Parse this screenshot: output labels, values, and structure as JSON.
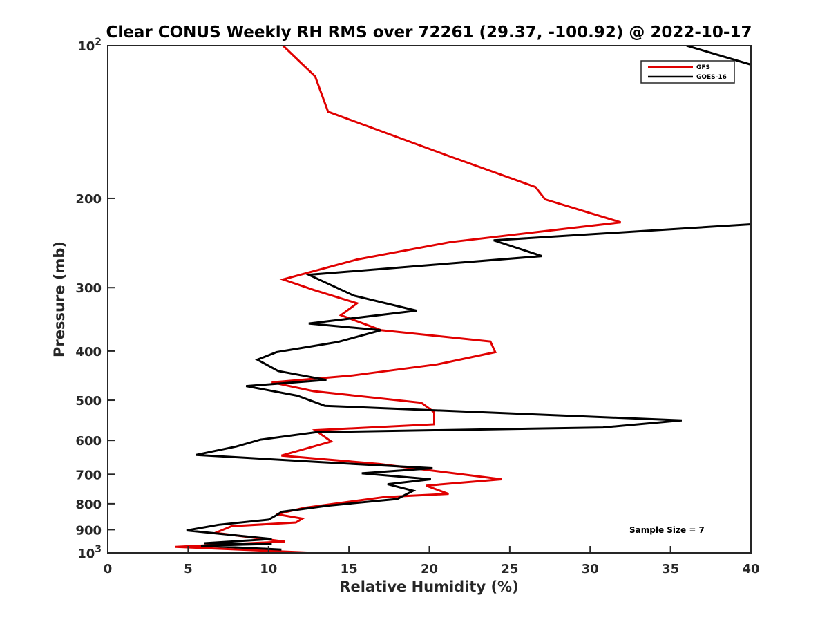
{
  "chart_data": {
    "type": "line",
    "title": "Clear CONUS Weekly RH RMS over 72261 (29.37, -100.92) @ 2022-10-17",
    "xlabel": "Relative Humidity (%)",
    "ylabel": "Pressure (mb)",
    "xlim": [
      0,
      40
    ],
    "ylim": [
      100,
      1000
    ],
    "y_scale": "log",
    "y_reversed": true,
    "x_ticks": [
      0,
      5,
      10,
      15,
      20,
      25,
      30,
      35,
      40
    ],
    "x_tick_labels": [
      "0",
      "5",
      "10",
      "15",
      "20",
      "25",
      "30",
      "35",
      "40"
    ],
    "y_ticks": [
      100,
      200,
      300,
      400,
      500,
      600,
      700,
      800,
      900,
      1000
    ],
    "y_tick_labels": [
      {
        "base": "10",
        "exp": "2"
      },
      {
        "base": "200",
        "exp": ""
      },
      {
        "base": "300",
        "exp": ""
      },
      {
        "base": "400",
        "exp": ""
      },
      {
        "base": "500",
        "exp": ""
      },
      {
        "base": "600",
        "exp": ""
      },
      {
        "base": "700",
        "exp": ""
      },
      {
        "base": "800",
        "exp": ""
      },
      {
        "base": "900",
        "exp": ""
      },
      {
        "base": "10",
        "exp": "3"
      }
    ],
    "grid": false,
    "legend_position": "top-right",
    "annotation": "Sample Size = 7",
    "series": [
      {
        "name": "GFS",
        "color": "#e00000",
        "points": [
          [
            10.9,
            100
          ],
          [
            12.9,
            115
          ],
          [
            13.7,
            135
          ],
          [
            21.2,
            165
          ],
          [
            26.6,
            190
          ],
          [
            27.2,
            201
          ],
          [
            31.9,
            223
          ],
          [
            21.3,
            244
          ],
          [
            15.5,
            264
          ],
          [
            10.9,
            289
          ],
          [
            12.8,
            303
          ],
          [
            15.5,
            322
          ],
          [
            14.5,
            340
          ],
          [
            17.0,
            364
          ],
          [
            23.8,
            383
          ],
          [
            24.1,
            402
          ],
          [
            20.5,
            425
          ],
          [
            15.2,
            447
          ],
          [
            10.2,
            461
          ],
          [
            12.8,
            480
          ],
          [
            19.5,
            506
          ],
          [
            20.3,
            528
          ],
          [
            20.3,
            558
          ],
          [
            12.9,
            573
          ],
          [
            13.9,
            603
          ],
          [
            10.8,
            643
          ],
          [
            16.9,
            668
          ],
          [
            24.5,
            716
          ],
          [
            19.8,
            737
          ],
          [
            21.2,
            765
          ],
          [
            17.2,
            776
          ],
          [
            12.2,
            815
          ],
          [
            10.5,
            839
          ],
          [
            12.1,
            856
          ],
          [
            11.7,
            871
          ],
          [
            7.7,
            886
          ],
          [
            6.7,
            913
          ],
          [
            11.0,
            950
          ],
          [
            4.2,
            973
          ],
          [
            12.9,
            1000
          ]
        ]
      },
      {
        "name": "GOES-16",
        "color": "#000000",
        "points": [
          [
            36.0,
            100
          ],
          [
            40.0,
            109
          ],
          [
            40.0,
            225
          ],
          [
            24.0,
            242
          ],
          [
            27.0,
            260
          ],
          [
            12.5,
            283
          ],
          [
            15.3,
            311
          ],
          [
            19.2,
            333
          ],
          [
            12.5,
            353
          ],
          [
            17.0,
            364
          ],
          [
            14.3,
            384
          ],
          [
            10.5,
            402
          ],
          [
            9.3,
            416
          ],
          [
            10.6,
            438
          ],
          [
            13.6,
            456
          ],
          [
            8.6,
            469
          ],
          [
            11.8,
            490
          ],
          [
            13.5,
            513
          ],
          [
            35.7,
            548
          ],
          [
            30.8,
            566
          ],
          [
            13.0,
            578
          ],
          [
            9.5,
            598
          ],
          [
            8.0,
            617
          ],
          [
            5.5,
            641
          ],
          [
            13.1,
            662
          ],
          [
            20.2,
            681
          ],
          [
            15.8,
            697
          ],
          [
            20.1,
            716
          ],
          [
            17.4,
            732
          ],
          [
            19.0,
            754
          ],
          [
            18.0,
            783
          ],
          [
            13.7,
            807
          ],
          [
            10.8,
            830
          ],
          [
            10.6,
            839
          ],
          [
            10.0,
            860
          ],
          [
            6.9,
            880
          ],
          [
            4.9,
            903
          ],
          [
            10.2,
            939
          ],
          [
            6.0,
            957
          ],
          [
            10.2,
            960
          ],
          [
            5.8,
            968
          ],
          [
            10.8,
            985
          ]
        ]
      }
    ]
  }
}
